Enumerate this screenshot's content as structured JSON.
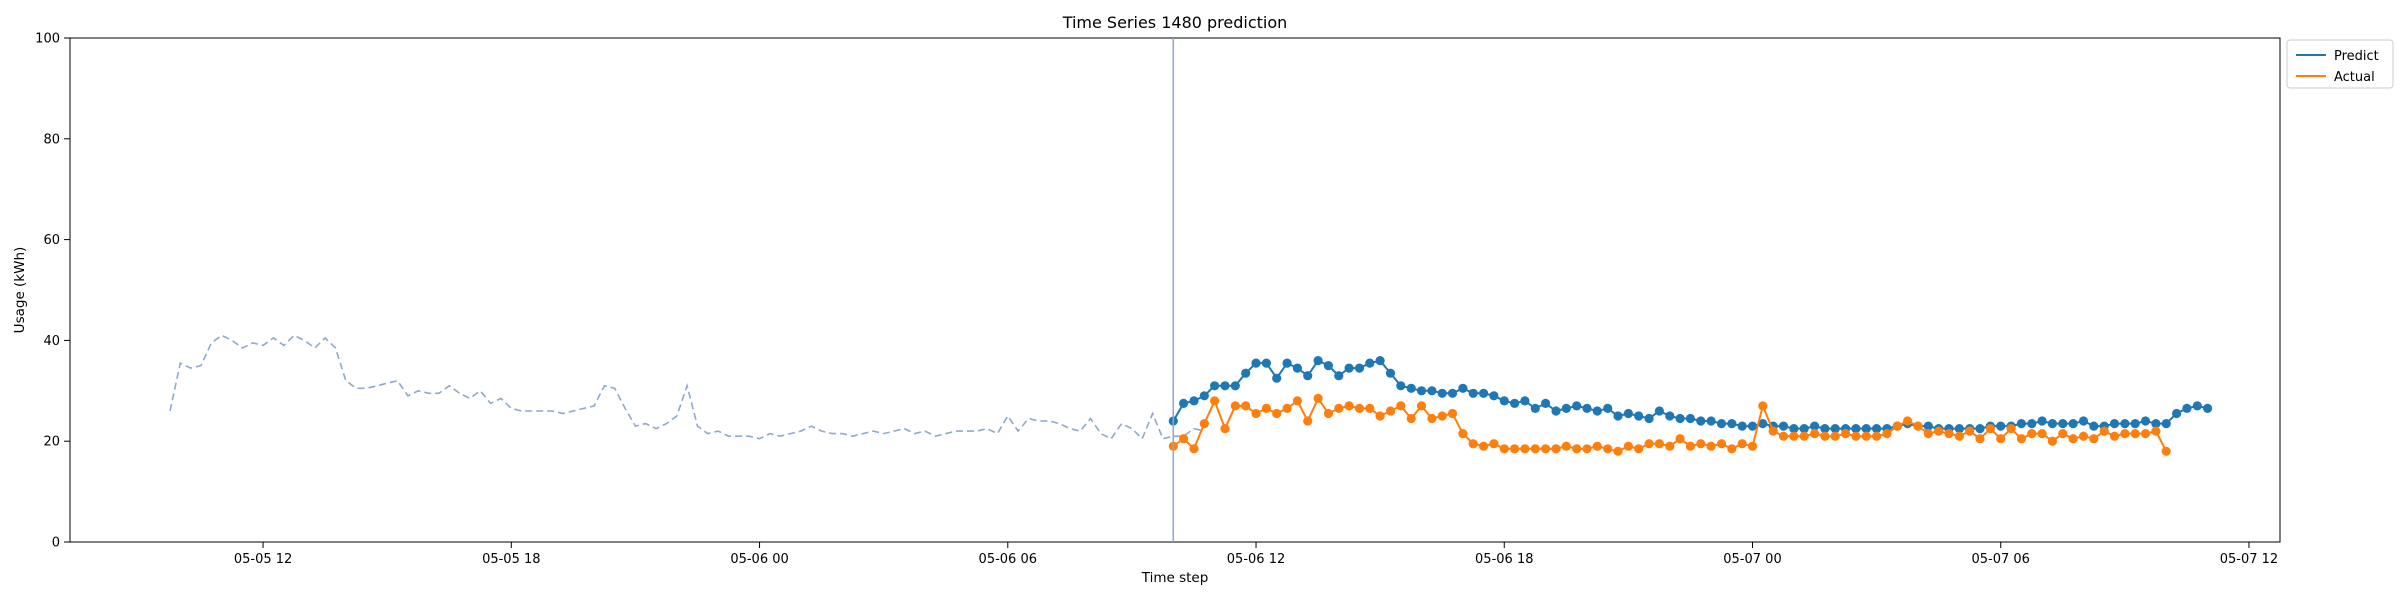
{
  "chart_data": {
    "type": "line",
    "title": "Time Series 1480 prediction",
    "xlabel": "Time step",
    "ylabel": "Usage (kWh)",
    "ylim": [
      0,
      100
    ],
    "y_ticks": [
      0,
      20,
      40,
      60,
      80,
      100
    ],
    "x_ticks": [
      "05-05 12",
      "05-05 18",
      "05-06 00",
      "05-06 06",
      "05-06 12",
      "05-06 18",
      "05-07 00",
      "05-07 06",
      "05-07 12"
    ],
    "grid": false,
    "legend": {
      "position": "top-right",
      "entries": [
        "Predict",
        "Actual"
      ]
    },
    "forecast_start": "05-06 10:00",
    "series": [
      {
        "name": "History",
        "style": "dashed",
        "color": "#8fa8cc",
        "step_minutes": 15,
        "start": "05-05 09:45",
        "values": [
          26,
          35.5,
          34.5,
          35,
          39.5,
          41,
          40,
          38.5,
          39.5,
          39,
          40.5,
          39,
          41,
          40,
          38.5,
          40.5,
          38.5,
          32,
          30.5,
          30.5,
          31,
          31.5,
          32,
          29,
          30,
          29.5,
          29.5,
          31,
          29.5,
          28.5,
          30,
          27.5,
          28.5,
          26.5,
          26,
          26,
          26,
          26,
          25.5,
          26,
          26.5,
          27,
          31,
          30.5,
          26.5,
          23,
          23.5,
          22.5,
          23.5,
          25,
          31,
          23,
          21.5,
          22,
          21,
          21,
          21,
          20.5,
          21.5,
          21,
          21.5,
          22,
          23,
          22,
          21.5,
          21.5,
          21,
          21.5,
          22,
          21.5,
          22,
          22.5,
          21.5,
          22,
          21,
          21.5,
          22,
          22,
          22,
          22.5,
          21.5,
          25,
          22,
          24.5,
          24,
          24,
          23.5,
          22.5,
          22,
          24.5,
          21.5,
          20.5,
          23.5,
          22.5,
          20.5,
          25.5,
          20.5,
          21,
          21,
          22.5,
          22
        ]
      },
      {
        "name": "Predict",
        "style": "solid-markers",
        "color": "#1f77b4",
        "step_minutes": 15,
        "start": "05-06 10:00",
        "values": [
          24,
          27.5,
          28,
          29,
          31,
          31,
          31,
          33.5,
          35.5,
          35.5,
          32.5,
          35.5,
          34.5,
          33,
          36,
          35,
          33,
          34.5,
          34.5,
          35.5,
          36,
          33.5,
          31,
          30.5,
          30,
          30,
          29.5,
          29.5,
          30.5,
          29.5,
          29.5,
          29,
          28,
          27.5,
          28,
          26.5,
          27.5,
          26,
          26.5,
          27,
          26.5,
          26,
          26.5,
          25,
          25.5,
          25,
          24.5,
          26,
          25,
          24.5,
          24.5,
          24,
          24,
          23.5,
          23.5,
          23,
          23,
          23.5,
          23,
          23,
          22.5,
          22.5,
          23,
          22.5,
          22.5,
          22.5,
          22.5,
          22.5,
          22.5,
          22.5,
          23,
          23.5,
          23,
          23,
          22.5,
          22.5,
          22.5,
          22.5,
          22.5,
          23,
          23,
          23,
          23.5,
          23.5,
          24,
          23.5,
          23.5,
          23.5,
          24,
          23,
          23,
          23.5,
          23.5,
          23.5,
          24,
          23.5,
          23.5,
          25.5,
          26.5,
          27,
          26.5
        ]
      },
      {
        "name": "Actual",
        "style": "solid-markers",
        "color": "#ff7f0e",
        "step_minutes": 15,
        "start": "05-06 10:00",
        "values": [
          19,
          20.5,
          18.5,
          23.5,
          28,
          22.5,
          27,
          27,
          25.5,
          26.5,
          25.5,
          26.5,
          28,
          24,
          28.5,
          25.5,
          26.5,
          27,
          26.5,
          26.5,
          25,
          26,
          27,
          24.5,
          27,
          24.5,
          25,
          25.5,
          21.5,
          19.5,
          19,
          19.5,
          18.5,
          18.5,
          18.5,
          18.5,
          18.5,
          18.5,
          19,
          18.5,
          18.5,
          19,
          18.5,
          18,
          19,
          18.5,
          19.5,
          19.5,
          19,
          20.5,
          19,
          19.5,
          19,
          19.5,
          18.5,
          19.5,
          19,
          27,
          22,
          21,
          21,
          21,
          21.5,
          21,
          21,
          21.5,
          21,
          21,
          21,
          21.5,
          23,
          24,
          23,
          21.5,
          22,
          21.5,
          21,
          22,
          20.5,
          22.5,
          20.5,
          22.5,
          20.5,
          21.5,
          21.5,
          20,
          21.5,
          20.5,
          21,
          20.5,
          22,
          21,
          21.5,
          21.5,
          21.5,
          22,
          18
        ]
      }
    ]
  }
}
